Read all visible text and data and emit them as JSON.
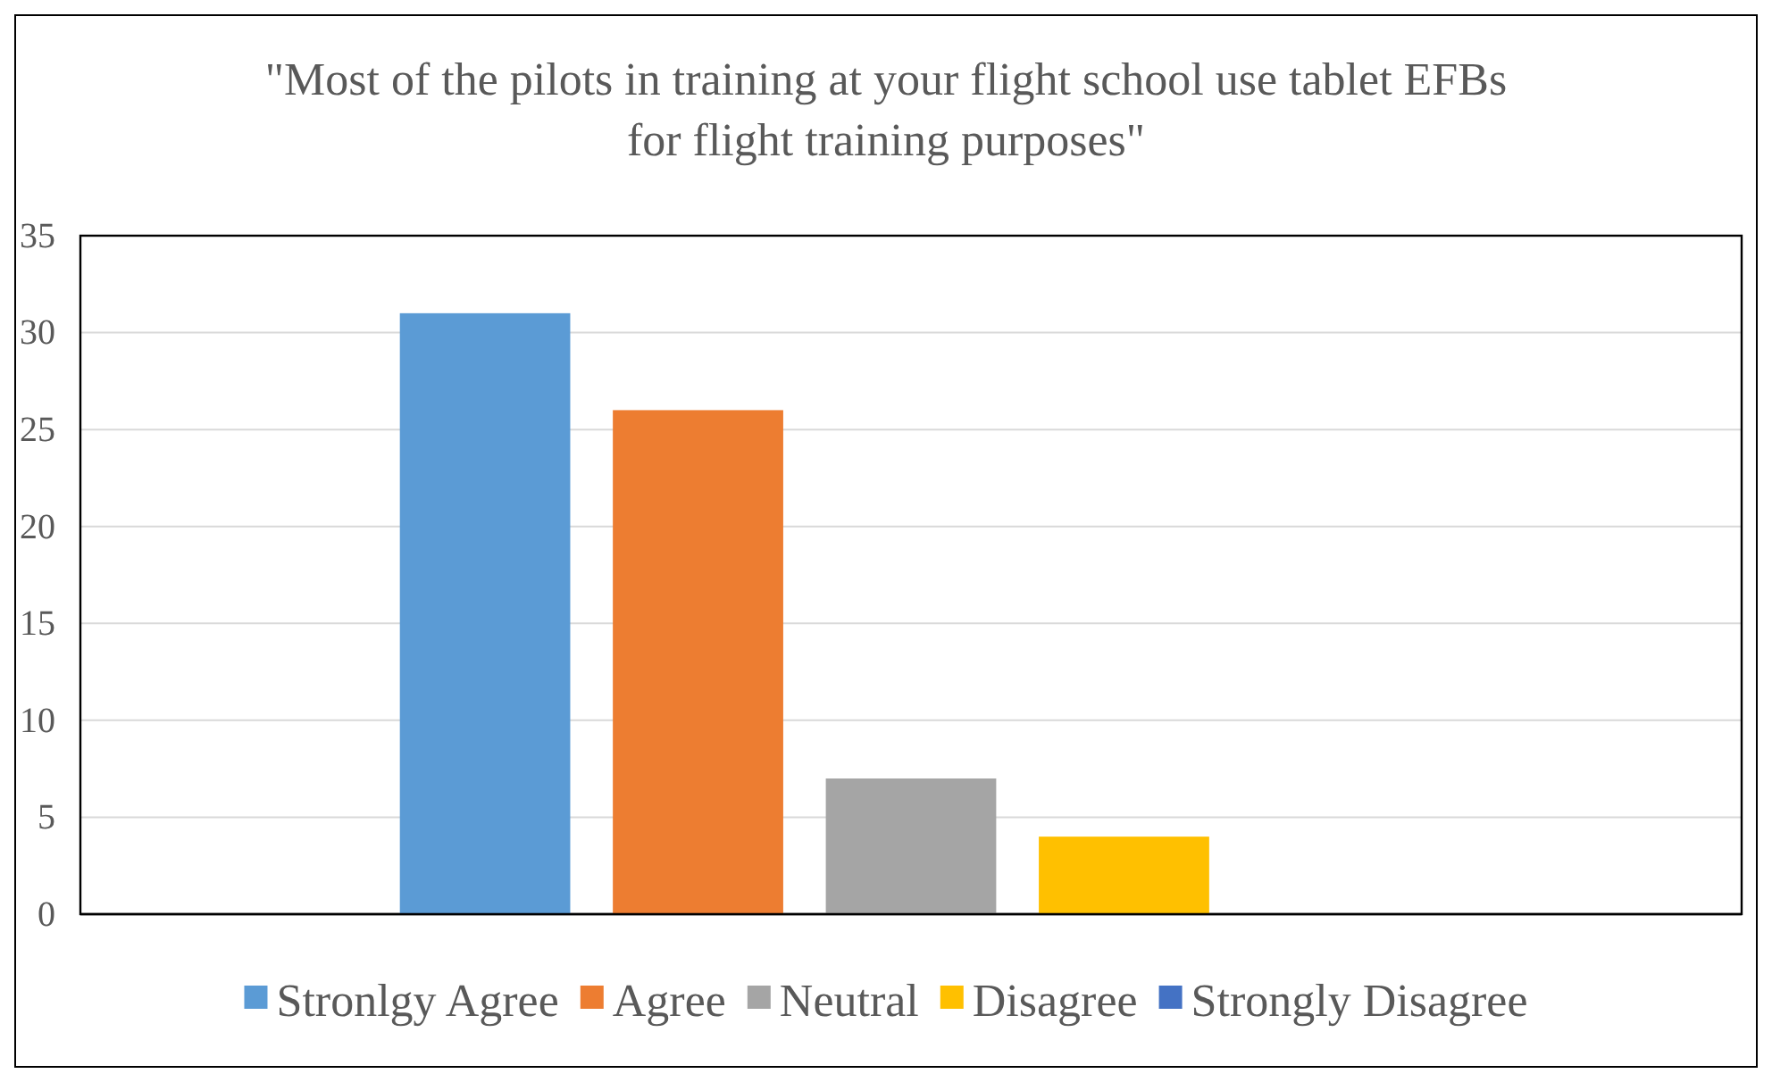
{
  "chart_data": {
    "type": "bar",
    "title": "\"Most of the pilots in training at your flight school use tablet EFBs for flight training purposes\"",
    "categories": [
      null
    ],
    "series": [
      {
        "name": "Stronlgy Agree",
        "color": "#5b9bd5",
        "values": [
          31
        ]
      },
      {
        "name": "Agree",
        "color": "#ed7d31",
        "values": [
          26
        ]
      },
      {
        "name": "Neutral",
        "color": "#a5a5a5",
        "values": [
          7
        ]
      },
      {
        "name": "Disagree",
        "color": "#ffc000",
        "values": [
          4
        ]
      },
      {
        "name": "Strongly Disagree",
        "color": "#4472c4",
        "values": [
          0
        ]
      }
    ],
    "ylim": [
      0,
      35
    ],
    "yticks": [
      0,
      5,
      10,
      15,
      20,
      25,
      30,
      35
    ],
    "grid": "y",
    "legend": "bottom"
  }
}
